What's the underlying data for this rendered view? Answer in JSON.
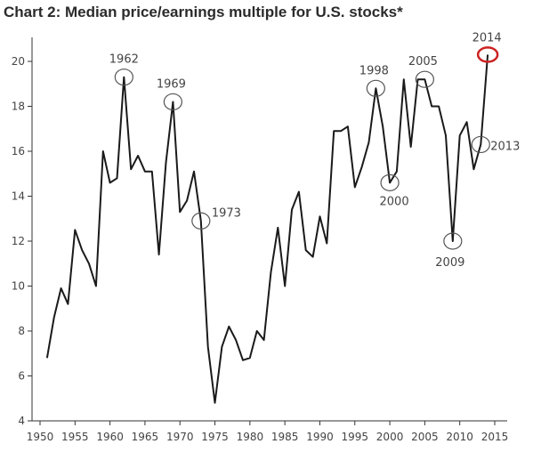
{
  "title": "Chart 2: Median price/earnings multiple for U.S. stocks*",
  "chart_data": {
    "type": "line",
    "title": "Chart 2: Median price/earnings multiple for U.S. stocks*",
    "xlabel": "",
    "ylabel": "",
    "xlim": [
      1950,
      2015
    ],
    "ylim": [
      4,
      20
    ],
    "x_ticks": [
      "1950",
      "1955",
      "1960",
      "1965",
      "1970",
      "1975",
      "1980",
      "1985",
      "1990",
      "1995",
      "2000",
      "2005",
      "2010",
      "2015"
    ],
    "y_ticks": [
      "4",
      "6",
      "8",
      "10",
      "12",
      "14",
      "16",
      "18",
      "20"
    ],
    "grid": false,
    "colors": {
      "line": "#1a1a1a",
      "highlight": "#cc2222",
      "annotation": "#555555"
    },
    "series": [
      {
        "x": [
          1951,
          1952,
          1953,
          1954,
          1955,
          1956,
          1957,
          1958,
          1959,
          1960,
          1961,
          1962,
          1963,
          1964,
          1965,
          1966,
          1967,
          1968,
          1969,
          1970,
          1971,
          1972,
          1973,
          1974,
          1975,
          1976,
          1977,
          1978,
          1979,
          1980,
          1981,
          1982,
          1983,
          1984,
          1985,
          1986,
          1987,
          1988,
          1989,
          1990,
          1991,
          1992,
          1993,
          1994,
          1995,
          1996,
          1997,
          1998,
          1999,
          2000,
          2001,
          2002,
          2003,
          2004,
          2005,
          2006,
          2007,
          2008,
          2009,
          2010,
          2011,
          2012,
          2013,
          2014
        ],
        "values": [
          6.8,
          8.6,
          9.9,
          9.2,
          12.5,
          11.6,
          11.0,
          10.0,
          16.0,
          14.6,
          14.8,
          19.3,
          15.2,
          15.8,
          15.1,
          15.1,
          11.4,
          15.5,
          18.2,
          13.3,
          13.8,
          15.1,
          12.9,
          7.3,
          4.8,
          7.3,
          8.2,
          7.6,
          6.7,
          6.8,
          8.0,
          7.6,
          10.6,
          12.6,
          10.0,
          13.4,
          14.2,
          11.6,
          11.3,
          13.1,
          11.9,
          16.9,
          16.9,
          17.1,
          14.4,
          15.3,
          16.4,
          18.8,
          17.1,
          14.6,
          15.1,
          19.2,
          16.2,
          19.2,
          19.2,
          18.0,
          18.0,
          16.7,
          12.0,
          16.7,
          17.3,
          15.2,
          16.3,
          20.3
        ]
      }
    ],
    "annotations": [
      {
        "label": "1962",
        "x": 1962,
        "y": 19.3
      },
      {
        "label": "1969",
        "x": 1969,
        "y": 18.2
      },
      {
        "label": "1973",
        "x": 1973,
        "y": 12.9
      },
      {
        "label": "1998",
        "x": 1998,
        "y": 18.8
      },
      {
        "label": "2000",
        "x": 2000,
        "y": 14.6
      },
      {
        "label": "2005",
        "x": 2005,
        "y": 19.2
      },
      {
        "label": "2009",
        "x": 2009,
        "y": 12.0
      },
      {
        "label": "2013",
        "x": 2013,
        "y": 16.3
      },
      {
        "label": "2014",
        "x": 2014,
        "y": 20.3,
        "highlight": true
      }
    ]
  }
}
